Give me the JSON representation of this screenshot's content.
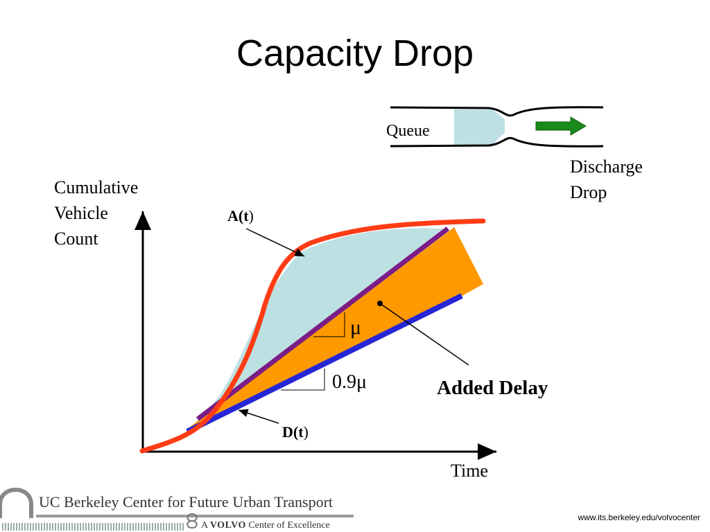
{
  "slide": {
    "title": "Capacity Drop"
  },
  "bottleneck_inset": {
    "queue_label": "Queue",
    "discharge_label_line1": "Discharge",
    "discharge_label_line2": "Drop"
  },
  "diagram": {
    "y_axis_label": [
      "Cumulative",
      "Vehicle",
      "Count"
    ],
    "x_axis_label": "Time",
    "arrival_curve_label": {
      "prefix": "A(",
      "var": "t",
      "suffix": ")"
    },
    "departure_curve_label": {
      "prefix": "D(",
      "var": "t",
      "suffix": ")"
    },
    "slope_label_mu": "μ",
    "slope_label_reduced": "0.9μ",
    "added_delay_label": "Added Delay",
    "colors": {
      "arrival_curve": "#ff3c14",
      "departure_curve": "#2626d6",
      "capacity_line": "#7b1d86",
      "queue_area": "#bde0e3",
      "added_delay_area": "#ff9900",
      "discharge_arrow": "#1a8a1a"
    }
  },
  "footer": {
    "logo_main": "UC Berkeley Center for Future Urban Transport",
    "logo_sub_prefix": "A ",
    "logo_sub_brand": "VOLVO",
    "logo_sub_suffix": " Center of Excellence",
    "url": "www.its.berkeley.edu/volvocenter"
  }
}
